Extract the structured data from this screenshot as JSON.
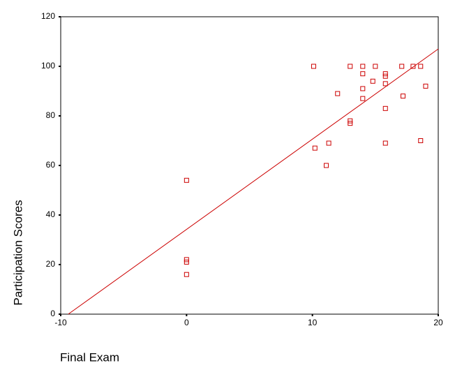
{
  "chart_data": {
    "type": "scatter",
    "x_label": "Final Exam",
    "y_label": "Participation Scores",
    "xlim": [
      -10,
      20
    ],
    "xticks": [
      -10,
      0,
      10,
      20
    ],
    "ylim": [
      0,
      120
    ],
    "yticks": [
      0,
      20,
      40,
      60,
      80,
      100,
      120
    ],
    "color": "#cc0000",
    "x": [
      0,
      0,
      0,
      0,
      10.1,
      10.2,
      11.1,
      11.3,
      12,
      13,
      13,
      13,
      14,
      14,
      14,
      14,
      14.8,
      15,
      15.8,
      15.8,
      15.8,
      15.8,
      15.8,
      17.1,
      17.2,
      18,
      18.6,
      18.6,
      19
    ],
    "y": [
      54,
      22,
      21,
      16,
      100,
      67,
      60,
      69,
      89,
      100,
      78,
      77,
      100,
      97,
      91,
      87,
      94,
      100,
      97,
      96,
      93,
      83,
      69,
      100,
      88,
      100,
      100,
      70,
      92
    ],
    "trend_line": {
      "x": [
        -9.4,
        20
      ],
      "y": [
        0,
        107
      ]
    }
  }
}
